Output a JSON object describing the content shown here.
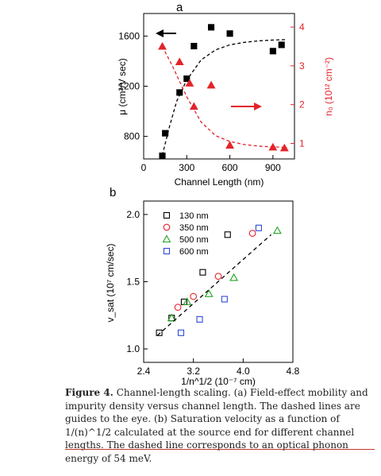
{
  "chart_data": [
    {
      "panel_label": "a",
      "type": "scatter",
      "xlabel": "Channel Length (nm)",
      "xlim": [
        0,
        1050
      ],
      "xticks": [
        0,
        300,
        600,
        900
      ],
      "y_left_label": "μ (cm²/V sec)",
      "y_left_lim": [
        620,
        1780
      ],
      "y_left_ticks": [
        800,
        1200,
        1600
      ],
      "y_right_label": "n₀ (10¹² cm⁻²)",
      "y_right_lim": [
        0.6,
        4.35
      ],
      "y_right_ticks": [
        1,
        2,
        3,
        4
      ],
      "series": [
        {
          "axis": "left",
          "color": "#000000",
          "marker": "square",
          "x": [
            130,
            150,
            250,
            300,
            350,
            470,
            600,
            900,
            960
          ],
          "y": [
            645,
            825,
            1150,
            1260,
            1520,
            1670,
            1620,
            1480,
            1530
          ]
        },
        {
          "axis": "left",
          "color": "#000000",
          "line": "dashed",
          "x": [
            130,
            180,
            230,
            300,
            400,
            500,
            600,
            700,
            800,
            900,
            1000
          ],
          "y": [
            650,
            880,
            1080,
            1250,
            1410,
            1490,
            1530,
            1550,
            1562,
            1568,
            1572
          ]
        },
        {
          "axis": "right",
          "color": "#e3242b",
          "marker": "triangle",
          "x": [
            130,
            250,
            320,
            350,
            470,
            600,
            900,
            980
          ],
          "y": [
            3.5,
            3.1,
            2.55,
            1.95,
            2.5,
            0.95,
            0.9,
            0.88
          ]
        },
        {
          "axis": "right",
          "color": "#e3242b",
          "line": "dashed",
          "x": [
            130,
            200,
            300,
            400,
            500,
            600,
            700,
            800,
            900,
            1000
          ],
          "y": [
            3.5,
            3.0,
            2.2,
            1.55,
            1.2,
            1.05,
            0.97,
            0.93,
            0.91,
            0.9
          ]
        }
      ]
    },
    {
      "panel_label": "b",
      "type": "scatter",
      "xlabel": "1/n^1/2 (10⁻⁷ cm)",
      "ylabel": "v_sat (10⁷ cm/sec)",
      "xlim": [
        2.4,
        4.8
      ],
      "ylim": [
        0.9,
        2.1
      ],
      "xticks": [
        2.4,
        3.2,
        4.0,
        4.8
      ],
      "yticks": [
        1.0,
        1.5,
        2.0
      ],
      "legend_position": "top-left",
      "series": [
        {
          "name": "130 nm",
          "color": "#000000",
          "marker": "square",
          "x": [
            2.65,
            2.85,
            3.05,
            3.35,
            3.75
          ],
          "y": [
            1.12,
            1.23,
            1.35,
            1.57,
            1.85
          ]
        },
        {
          "name": "350 nm",
          "color": "#e3242b",
          "marker": "circle",
          "x": [
            2.95,
            3.2,
            3.6,
            4.15
          ],
          "y": [
            1.31,
            1.39,
            1.54,
            1.86
          ]
        },
        {
          "name": "500 nm",
          "color": "#1fa51f",
          "marker": "triangle",
          "x": [
            2.85,
            3.1,
            3.45,
            3.85,
            4.55
          ],
          "y": [
            1.23,
            1.35,
            1.41,
            1.53,
            1.88
          ]
        },
        {
          "name": "600 nm",
          "color": "#2a4bd7",
          "marker": "square",
          "x": [
            3.0,
            3.3,
            3.7,
            4.25
          ],
          "y": [
            1.12,
            1.22,
            1.37,
            1.9
          ]
        },
        {
          "color": "#000000",
          "line": "dashed",
          "x": [
            2.62,
            4.45
          ],
          "y": [
            1.1,
            1.85
          ]
        }
      ]
    }
  ],
  "caption": {
    "label": "Figure 4.",
    "text": "Channel-length scaling. (a) Field-effect mobility and impurity density versus channel length. The dashed lines are guides to the eye. (b) Saturation velocity as a function of 1/(n)^1/2 calculated at the source end for different channel lengths. The dashed line corresponds to an optical phonon energy of 54 meV."
  }
}
